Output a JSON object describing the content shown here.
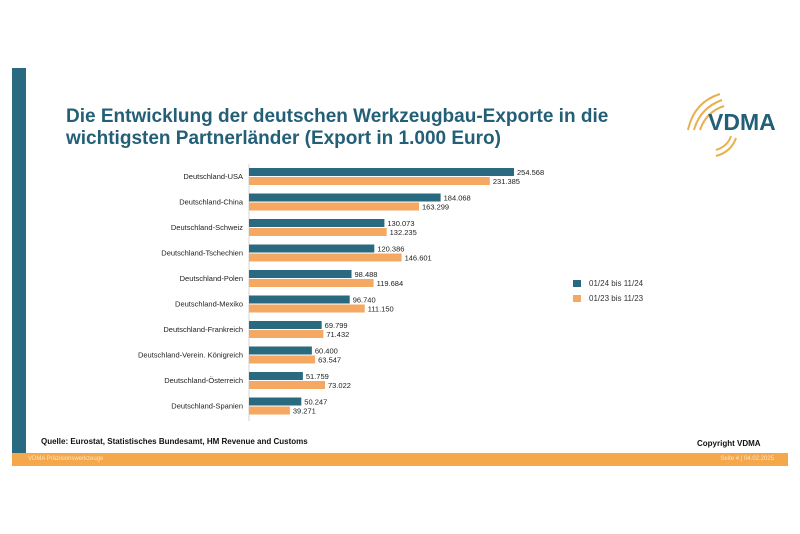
{
  "title_line1": "Die Entwicklung der deutschen Werkzeugbau-Exporte in die",
  "title_line2": "wichtigsten Partnerländer (Export in 1.000 Euro)",
  "logo_text": "VDMA",
  "source": "Quelle: Eurostat, Statistisches Bundesamt, HM Revenue and Customs",
  "copyright": "Copyright VDMA",
  "footer_left": "VDMA Präzisionswerkzeuge",
  "footer_right": "Seite 4 | 04.02.2025",
  "colors": {
    "series1": "#2a6a80",
    "series2": "#f5a862",
    "accent": "#f5a84a"
  },
  "chart_data": {
    "type": "bar",
    "orientation": "horizontal",
    "categories": [
      "Deutschland-USA",
      "Deutschland-China",
      "Deutschland-Schweiz",
      "Deutschland-Tschechien",
      "Deutschland-Polen",
      "Deutschland-Mexiko",
      "Deutschland-Frankreich",
      "Deutschland-Verein. Königreich",
      "Deutschland-Österreich",
      "Deutschland-Spanien"
    ],
    "series": [
      {
        "name": "01/24 bis 11/24",
        "values": [
          254568,
          184068,
          130073,
          120386,
          98488,
          96740,
          69799,
          60400,
          51759,
          50247
        ],
        "labels": [
          "254.568",
          "184.068",
          "130.073",
          "120.386",
          "98.488",
          "96.740",
          "69.799",
          "60.400",
          "51.759",
          "50.247"
        ]
      },
      {
        "name": "01/23 bis 11/23",
        "values": [
          231385,
          163299,
          132235,
          146601,
          119684,
          111150,
          71432,
          63547,
          73022,
          39271
        ],
        "labels": [
          "231.385",
          "163.299",
          "132.235",
          "146.601",
          "119.684",
          "111.150",
          "71.432",
          "63.547",
          "73.022",
          "39.271"
        ]
      }
    ],
    "legend": "right",
    "grid": false
  }
}
